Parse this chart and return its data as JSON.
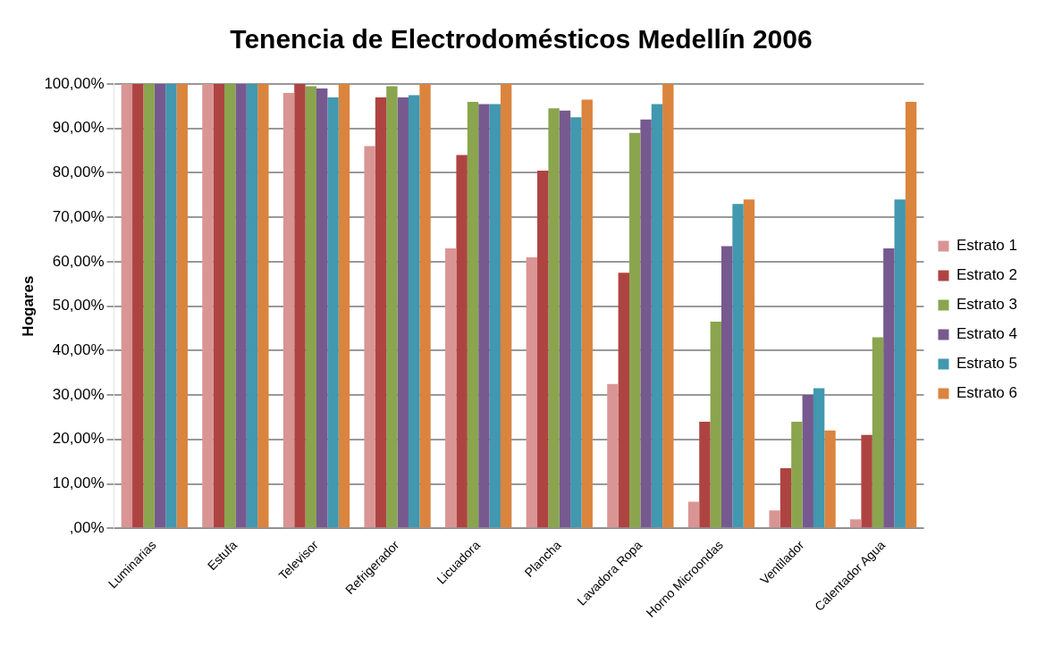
{
  "chart_data": {
    "type": "bar",
    "title": "Tenencia de Electrodomésticos Medellín 2006",
    "ylabel": "Hogares",
    "categories": [
      "Luminarias",
      "Estufa",
      "Televisor",
      "Refrigerador",
      "Licuadora",
      "Plancha",
      "Lavadora Ropa",
      "Horno Microondas",
      "Ventilador",
      "Calentador Agua"
    ],
    "series": [
      {
        "name": "Estrato 1",
        "color": "#d99594",
        "values": [
          100,
          100,
          98,
          86,
          63,
          61,
          32.5,
          6,
          4,
          2
        ]
      },
      {
        "name": "Estrato 2",
        "color": "#ae4441",
        "values": [
          100,
          100,
          100,
          97,
          84,
          80.5,
          57.5,
          24,
          13.5,
          21
        ]
      },
      {
        "name": "Estrato 3",
        "color": "#8aa54e",
        "values": [
          100,
          100,
          99.5,
          99.5,
          96,
          94.5,
          89,
          46.5,
          24,
          43
        ]
      },
      {
        "name": "Estrato 4",
        "color": "#765a8f",
        "values": [
          100,
          100,
          99,
          97,
          95.5,
          94,
          92,
          63.5,
          30,
          63
        ]
      },
      {
        "name": "Estrato 5",
        "color": "#4198af",
        "values": [
          100,
          100,
          97,
          97.5,
          95.5,
          92.5,
          95.5,
          73,
          31.5,
          74
        ]
      },
      {
        "name": "Estrato 6",
        "color": "#db843d",
        "values": [
          100,
          100,
          100,
          100,
          100,
          96.5,
          100,
          74,
          22,
          96
        ]
      }
    ],
    "ylim": [
      0,
      100
    ],
    "yticks": [
      {
        "value": 0,
        "label": ",00%"
      },
      {
        "value": 10,
        "label": "10,00%"
      },
      {
        "value": 20,
        "label": "20,00%"
      },
      {
        "value": 30,
        "label": "30,00%"
      },
      {
        "value": 40,
        "label": "40,00%"
      },
      {
        "value": 50,
        "label": "50,00%"
      },
      {
        "value": 60,
        "label": "60,00%"
      },
      {
        "value": 70,
        "label": "70,00%"
      },
      {
        "value": 80,
        "label": "80,00%"
      },
      {
        "value": 90,
        "label": "90,00%"
      },
      {
        "value": 100,
        "label": "100,00%"
      }
    ],
    "grid": "y",
    "legend": "right"
  }
}
